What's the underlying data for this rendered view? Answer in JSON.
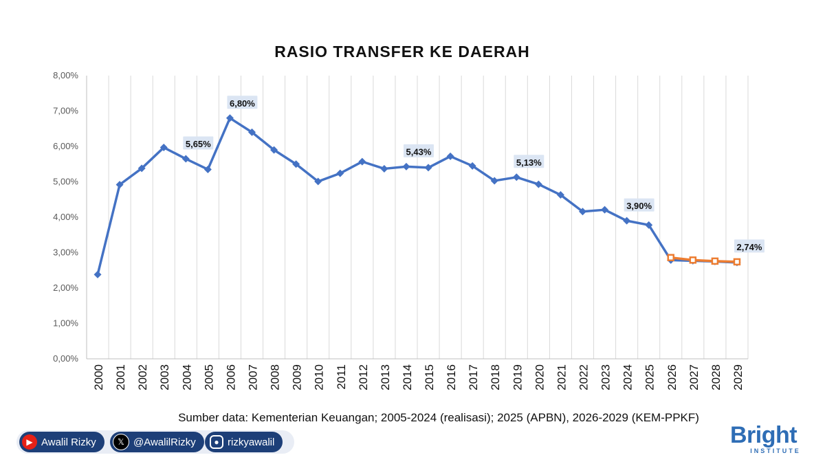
{
  "chart_data": {
    "type": "line",
    "title": "RASIO TRANSFER KE DAERAH",
    "xlabel": "",
    "ylabel": "",
    "categories": [
      "2000",
      "2001",
      "2002",
      "2003",
      "2004",
      "2005",
      "2006",
      "2007",
      "2008",
      "2009",
      "2010",
      "2011",
      "2012",
      "2013",
      "2014",
      "2015",
      "2016",
      "2017",
      "2018",
      "2019",
      "2020",
      "2021",
      "2022",
      "2023",
      "2024",
      "2025",
      "2026",
      "2027",
      "2028",
      "2029"
    ],
    "ylim": [
      0,
      8
    ],
    "yticks": [
      "0,00%",
      "1,00%",
      "2,00%",
      "3,00%",
      "4,00%",
      "5,00%",
      "6,00%",
      "7,00%",
      "8,00%"
    ],
    "grid": "vertical",
    "series": [
      {
        "color": "#4472c4",
        "marker": "diamond",
        "values": [
          2.38,
          4.92,
          5.38,
          5.97,
          5.65,
          5.35,
          6.8,
          6.4,
          5.9,
          5.5,
          5.01,
          5.24,
          5.57,
          5.37,
          5.43,
          5.4,
          5.72,
          5.45,
          5.03,
          5.13,
          4.93,
          4.63,
          4.16,
          4.21,
          3.9,
          3.78,
          2.79,
          2.77,
          2.75,
          2.72
        ]
      },
      {
        "color": "#ed7d31",
        "marker": "square",
        "values": [
          null,
          null,
          null,
          null,
          null,
          null,
          null,
          null,
          null,
          null,
          null,
          null,
          null,
          null,
          null,
          null,
          null,
          null,
          null,
          null,
          null,
          null,
          null,
          null,
          null,
          null,
          2.86,
          2.79,
          2.76,
          2.74
        ]
      }
    ],
    "data_labels": [
      {
        "category": "2004",
        "value": 5.65,
        "text": "5,65%"
      },
      {
        "category": "2006",
        "value": 6.8,
        "text": "6,80%"
      },
      {
        "category": "2014",
        "value": 5.43,
        "text": "5,43%"
      },
      {
        "category": "2019",
        "value": 5.13,
        "text": "5,13%"
      },
      {
        "category": "2024",
        "value": 3.9,
        "text": "3,90%"
      },
      {
        "category": "2029",
        "value": 2.74,
        "text": "2,74%"
      }
    ]
  },
  "source_note": "Sumber data: Kementerian Keuangan; 2005-2024 (realisasi); 2025 (APBN), 2026-2029 (KEM-PPKF)",
  "social": {
    "youtube": {
      "label": "Awalil Rizky",
      "icon": "youtube-icon",
      "color": "#e62117"
    },
    "x": {
      "label": "@AwalilRizky",
      "icon": "x-icon"
    },
    "instagram": {
      "label": "rizkyawalil",
      "icon": "instagram-icon"
    }
  },
  "brand": {
    "name": "Bright",
    "sub": "INSTITUTE",
    "color": "#2e6db5"
  }
}
